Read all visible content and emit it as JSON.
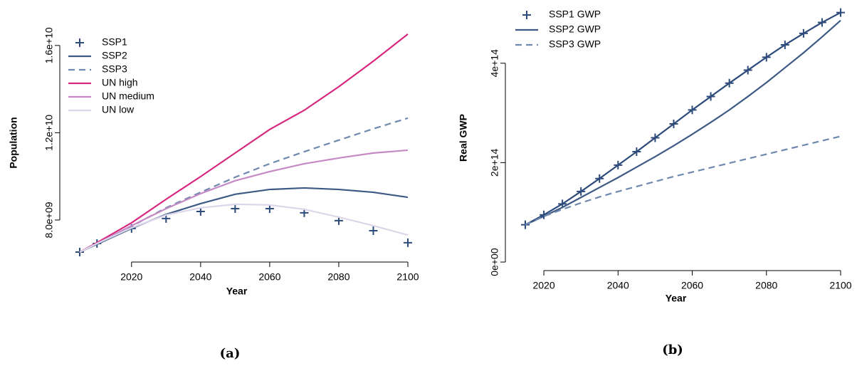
{
  "chart_data": [
    {
      "type": "line",
      "caption": "(a)",
      "x_label": "Year",
      "y_label": "Population",
      "x": [
        2005,
        2010,
        2020,
        2030,
        2040,
        2050,
        2060,
        2070,
        2080,
        2090,
        2100
      ],
      "xlim": [
        2005,
        2100
      ],
      "xticks": [
        2020,
        2040,
        2060,
        2080,
        2100
      ],
      "ylim": [
        6530000000.0,
        16550000000.0
      ],
      "yticks": [
        {
          "value": 8000000000.0,
          "label": "8.0e+09"
        },
        {
          "value": 12000000000.0,
          "label": "1.2e+10"
        },
        {
          "value": 16000000000.0,
          "label": "1.6e+10"
        }
      ],
      "legend": "top-left",
      "series": [
        {
          "name": "SSP1",
          "color": "#2c4a7a",
          "style": "points",
          "values": [
            6530000000.0,
            6920000000.0,
            7610000000.0,
            8070000000.0,
            8390000000.0,
            8520000000.0,
            8520000000.0,
            8330000000.0,
            7970000000.0,
            7510000000.0,
            6960000000.0
          ]
        },
        {
          "name": "SSP2",
          "color": "#3d5a85",
          "style": "solid",
          "values": [
            6530000000.0,
            6890000000.0,
            7610000000.0,
            8260000000.0,
            8750000000.0,
            9180000000.0,
            9400000000.0,
            9470000000.0,
            9400000000.0,
            9270000000.0,
            9040000000.0
          ]
        },
        {
          "name": "SSP3",
          "color": "#6f88ad",
          "style": "dashed",
          "values": [
            6530000000.0,
            6920000000.0,
            7710000000.0,
            8560000000.0,
            9270000000.0,
            9960000000.0,
            10580000000.0,
            11130000000.0,
            11660000000.0,
            12180000000.0,
            12670000000.0
          ]
        },
        {
          "name": "UN high",
          "color": "#d6287f",
          "style": "solid",
          "values": [
            6530000000.0,
            6960000000.0,
            7870000000.0,
            8950000000.0,
            9990000000.0,
            11070000000.0,
            12150000000.0,
            13030000000.0,
            14110000000.0,
            15280000000.0,
            16520000000.0
          ]
        },
        {
          "name": "UN medium",
          "color": "#c58ac5",
          "style": "solid",
          "values": [
            6530000000.0,
            6920000000.0,
            7740000000.0,
            8520000000.0,
            9210000000.0,
            9800000000.0,
            10220000000.0,
            10580000000.0,
            10840000000.0,
            11070000000.0,
            11200000000.0
          ]
        },
        {
          "name": "UN low",
          "color": "#dcd6ea",
          "style": "solid",
          "values": [
            6530000000.0,
            6920000000.0,
            7640000000.0,
            8230000000.0,
            8560000000.0,
            8720000000.0,
            8690000000.0,
            8490000000.0,
            8130000000.0,
            7740000000.0,
            7310000000.0
          ]
        }
      ]
    },
    {
      "type": "line",
      "caption": "(b)",
      "x_label": "Year",
      "y_label": "Real GWP",
      "x": [
        2015,
        2020,
        2025,
        2030,
        2035,
        2040,
        2045,
        2050,
        2055,
        2060,
        2065,
        2070,
        2075,
        2080,
        2085,
        2090,
        2095,
        2100
      ],
      "xlim": [
        2015,
        2100
      ],
      "xticks": [
        2020,
        2040,
        2060,
        2080,
        2100
      ],
      "ylim": [
        -20000000000000.0,
        520000000000000.0
      ],
      "yticks": [
        {
          "value": 0,
          "label": "0e+00"
        },
        {
          "value": 200000000000000.0,
          "label": "2e+14"
        },
        {
          "value": 400000000000000.0,
          "label": "4e+14"
        }
      ],
      "legend": "top-left",
      "series": [
        {
          "name": "SSP1 GWP",
          "color": "#2c4a7a",
          "style": "points-line",
          "values": [
            75000000000000.0,
            95000000000000.0,
            117000000000000.0,
            142000000000000.0,
            168000000000000.0,
            195000000000000.0,
            222000000000000.0,
            250000000000000.0,
            278000000000000.0,
            306000000000000.0,
            333000000000000.0,
            360000000000000.0,
            386000000000000.0,
            412000000000000.0,
            437000000000000.0,
            460000000000000.0,
            482000000000000.0,
            502000000000000.0
          ]
        },
        {
          "name": "SSP2 GWP",
          "color": "#3d5a85",
          "style": "solid",
          "values": [
            75000000000000.0,
            92000000000000.0,
            110000000000000.0,
            130000000000000.0,
            150000000000000.0,
            170000000000000.0,
            191000000000000.0,
            212000000000000.0,
            234000000000000.0,
            257000000000000.0,
            281000000000000.0,
            306000000000000.0,
            333000000000000.0,
            361000000000000.0,
            391000000000000.0,
            421000000000000.0,
            453000000000000.0,
            486000000000000.0
          ]
        },
        {
          "name": "SSP3 GWP",
          "color": "#6f88ad",
          "style": "dashed",
          "values": [
            75000000000000.0,
            92000000000000.0,
            106000000000000.0,
            119000000000000.0,
            131000000000000.0,
            142000000000000.0,
            152000000000000.0,
            162000000000000.0,
            172000000000000.0,
            181000000000000.0,
            190000000000000.0,
            199000000000000.0,
            208000000000000.0,
            217000000000000.0,
            226000000000000.0,
            235000000000000.0,
            244000000000000.0,
            253000000000000.0
          ]
        }
      ]
    }
  ]
}
